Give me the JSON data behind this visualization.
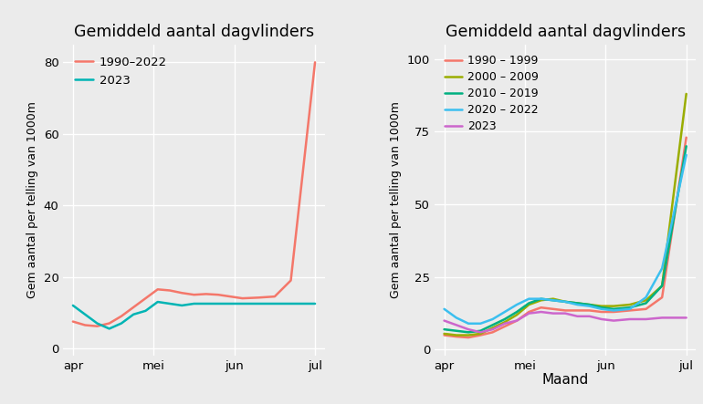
{
  "title": "Gemiddeld aantal dagvlinders",
  "ylabel": "Gem aantal per telling van 1000m",
  "xlabel2": "Maand",
  "background_color": "#ebebeb",
  "grid_color": "white",
  "plot1": {
    "x_labels": [
      "apr",
      "mei",
      "jun",
      "jul"
    ],
    "x_ticks": [
      1,
      2,
      3,
      4
    ],
    "ylim": [
      -2,
      85
    ],
    "yticks": [
      0,
      20,
      40,
      60,
      80
    ],
    "series": [
      {
        "label": "1990–2022",
        "color": "#F4776A",
        "data_x": [
          1.0,
          1.15,
          1.3,
          1.45,
          1.6,
          1.75,
          1.9,
          2.05,
          2.2,
          2.35,
          2.5,
          2.65,
          2.8,
          2.95,
          3.1,
          3.3,
          3.5,
          3.7,
          4.0
        ],
        "data_y": [
          7.5,
          6.5,
          6.2,
          7.0,
          9.0,
          11.5,
          14.0,
          16.5,
          16.2,
          15.5,
          15.0,
          15.2,
          15.0,
          14.5,
          14.0,
          14.2,
          14.5,
          19.0,
          80.0
        ]
      },
      {
        "label": "2023",
        "color": "#00B4B4",
        "data_x": [
          1.0,
          1.15,
          1.3,
          1.45,
          1.6,
          1.75,
          1.9,
          2.05,
          2.2,
          2.35,
          2.5,
          2.65,
          2.8,
          2.95,
          3.1,
          3.3,
          3.5,
          3.7,
          4.0
        ],
        "data_y": [
          12.0,
          9.5,
          7.0,
          5.5,
          7.0,
          9.5,
          10.5,
          13.0,
          12.5,
          12.0,
          12.5,
          12.5,
          12.5,
          12.5,
          12.5,
          12.5,
          12.5,
          12.5,
          12.5
        ]
      }
    ]
  },
  "plot2": {
    "x_labels": [
      "apr",
      "mei",
      "jun",
      "jul"
    ],
    "x_ticks": [
      1,
      2,
      3,
      4
    ],
    "ylim": [
      -2,
      105
    ],
    "yticks": [
      0,
      25,
      50,
      75,
      100
    ],
    "series": [
      {
        "label": "1990 – 1999",
        "color": "#F4776A",
        "data_x": [
          1.0,
          1.15,
          1.3,
          1.45,
          1.6,
          1.75,
          1.9,
          2.05,
          2.2,
          2.35,
          2.5,
          2.65,
          2.8,
          2.95,
          3.1,
          3.3,
          3.5,
          3.7,
          4.0
        ],
        "data_y": [
          5.0,
          4.5,
          4.2,
          5.0,
          6.0,
          8.0,
          10.0,
          13.0,
          14.5,
          14.0,
          13.5,
          13.5,
          13.5,
          13.0,
          13.0,
          13.5,
          14.0,
          18.0,
          73.0
        ]
      },
      {
        "label": "2000 – 2009",
        "color": "#9aad00",
        "data_x": [
          1.0,
          1.15,
          1.3,
          1.45,
          1.6,
          1.75,
          1.9,
          2.05,
          2.2,
          2.35,
          2.5,
          2.65,
          2.8,
          2.95,
          3.1,
          3.3,
          3.5,
          3.7,
          4.0
        ],
        "data_y": [
          5.5,
          5.0,
          5.0,
          5.5,
          7.5,
          9.5,
          12.0,
          15.5,
          17.0,
          17.5,
          16.5,
          16.0,
          15.5,
          15.0,
          15.0,
          15.5,
          17.0,
          22.0,
          88.0
        ]
      },
      {
        "label": "2010 – 2019",
        "color": "#00B080",
        "data_x": [
          1.0,
          1.15,
          1.3,
          1.45,
          1.6,
          1.75,
          1.9,
          2.05,
          2.2,
          2.35,
          2.5,
          2.65,
          2.8,
          2.95,
          3.1,
          3.3,
          3.5,
          3.7,
          4.0
        ],
        "data_y": [
          7.0,
          6.5,
          6.0,
          6.5,
          8.5,
          10.5,
          13.0,
          16.0,
          17.5,
          17.0,
          16.5,
          16.0,
          15.5,
          14.5,
          14.0,
          14.5,
          16.0,
          22.0,
          70.0
        ]
      },
      {
        "label": "2020 – 2022",
        "color": "#3BBFEF",
        "data_x": [
          1.0,
          1.15,
          1.3,
          1.45,
          1.6,
          1.75,
          1.9,
          2.05,
          2.2,
          2.35,
          2.5,
          2.65,
          2.8,
          2.95,
          3.1,
          3.3,
          3.5,
          3.7,
          4.0
        ],
        "data_y": [
          14.0,
          11.0,
          9.0,
          9.0,
          10.5,
          13.0,
          15.5,
          17.5,
          17.5,
          17.0,
          16.5,
          15.5,
          15.0,
          14.0,
          13.5,
          14.0,
          18.0,
          28.0,
          67.0
        ]
      },
      {
        "label": "2023",
        "color": "#CC66CC",
        "data_x": [
          1.0,
          1.15,
          1.3,
          1.45,
          1.6,
          1.75,
          1.9,
          2.05,
          2.2,
          2.35,
          2.5,
          2.65,
          2.8,
          2.95,
          3.1,
          3.3,
          3.5,
          3.7,
          4.0
        ],
        "data_y": [
          10.0,
          8.5,
          7.0,
          6.0,
          7.0,
          9.0,
          10.0,
          12.5,
          13.0,
          12.5,
          12.5,
          11.5,
          11.5,
          10.5,
          10.0,
          10.5,
          10.5,
          11.0,
          11.0
        ]
      }
    ]
  }
}
